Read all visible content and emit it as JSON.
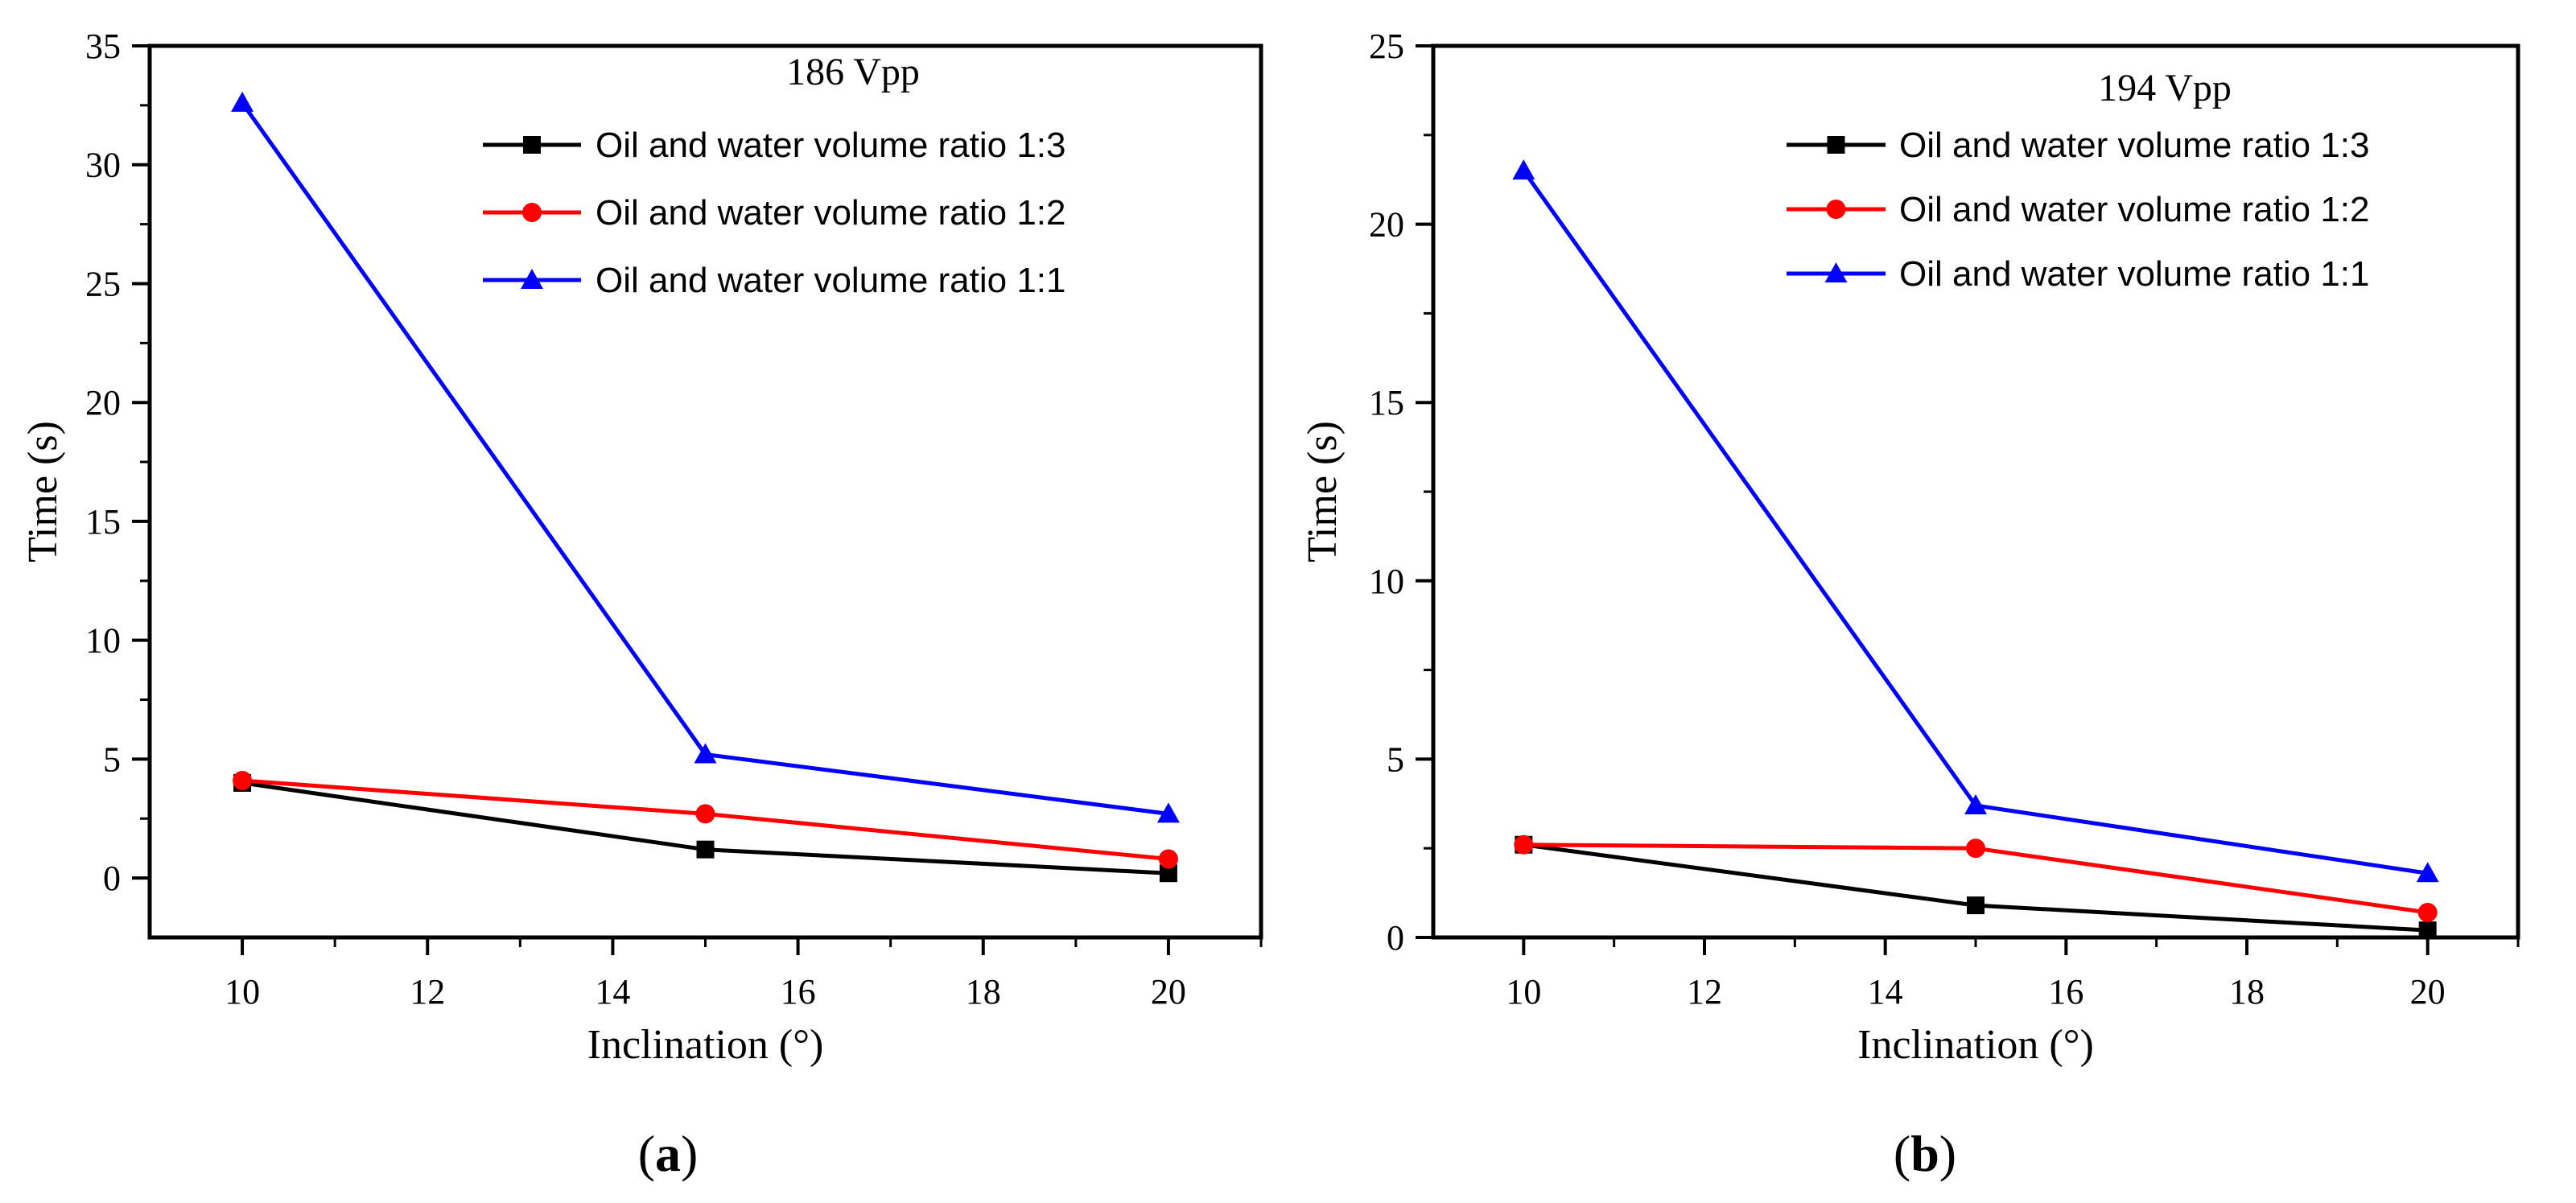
{
  "chart_data": [
    {
      "type": "line",
      "panel_label": "a",
      "legend_title": "186 Vpp",
      "xlabel": "Inclination (°)",
      "ylabel": "Time (s)",
      "xlim": [
        9,
        21
      ],
      "ylim": [
        -2.5,
        35
      ],
      "xticks": [
        10,
        12,
        14,
        16,
        18,
        20
      ],
      "yticks": [
        0,
        5,
        10,
        15,
        20,
        25,
        30,
        35
      ],
      "legend_position": "top-right",
      "series": [
        {
          "name": "Oil and water volume ratio 1:3",
          "color": "#000000",
          "marker": "square",
          "x": [
            10,
            15,
            20
          ],
          "y": [
            4.0,
            1.2,
            0.2
          ]
        },
        {
          "name": "Oil and water volume ratio 1:2",
          "color": "#ff0000",
          "marker": "circle",
          "x": [
            10,
            15,
            20
          ],
          "y": [
            4.1,
            2.7,
            0.8
          ]
        },
        {
          "name": "Oil and water volume ratio 1:1",
          "color": "#0000ff",
          "marker": "triangle",
          "x": [
            10,
            15,
            20
          ],
          "y": [
            32.6,
            5.2,
            2.7
          ]
        }
      ]
    },
    {
      "type": "line",
      "panel_label": "b",
      "legend_title": "194 Vpp",
      "xlabel": "Inclination (°)",
      "ylabel": "Time (s)",
      "xlim": [
        9,
        21
      ],
      "ylim": [
        0,
        25
      ],
      "xticks": [
        10,
        12,
        14,
        16,
        18,
        20
      ],
      "yticks": [
        0,
        5,
        10,
        15,
        20,
        25
      ],
      "legend_position": "top-right",
      "series": [
        {
          "name": "Oil and water volume ratio 1:3",
          "color": "#000000",
          "marker": "square",
          "x": [
            10,
            15,
            20
          ],
          "y": [
            2.6,
            0.9,
            0.2
          ]
        },
        {
          "name": "Oil and water volume ratio 1:2",
          "color": "#ff0000",
          "marker": "circle",
          "x": [
            10,
            15,
            20
          ],
          "y": [
            2.6,
            2.5,
            0.7
          ]
        },
        {
          "name": "Oil and water volume ratio 1:1",
          "color": "#0000ff",
          "marker": "triangle",
          "x": [
            10,
            15,
            20
          ],
          "y": [
            21.5,
            3.7,
            1.8
          ]
        }
      ]
    }
  ]
}
